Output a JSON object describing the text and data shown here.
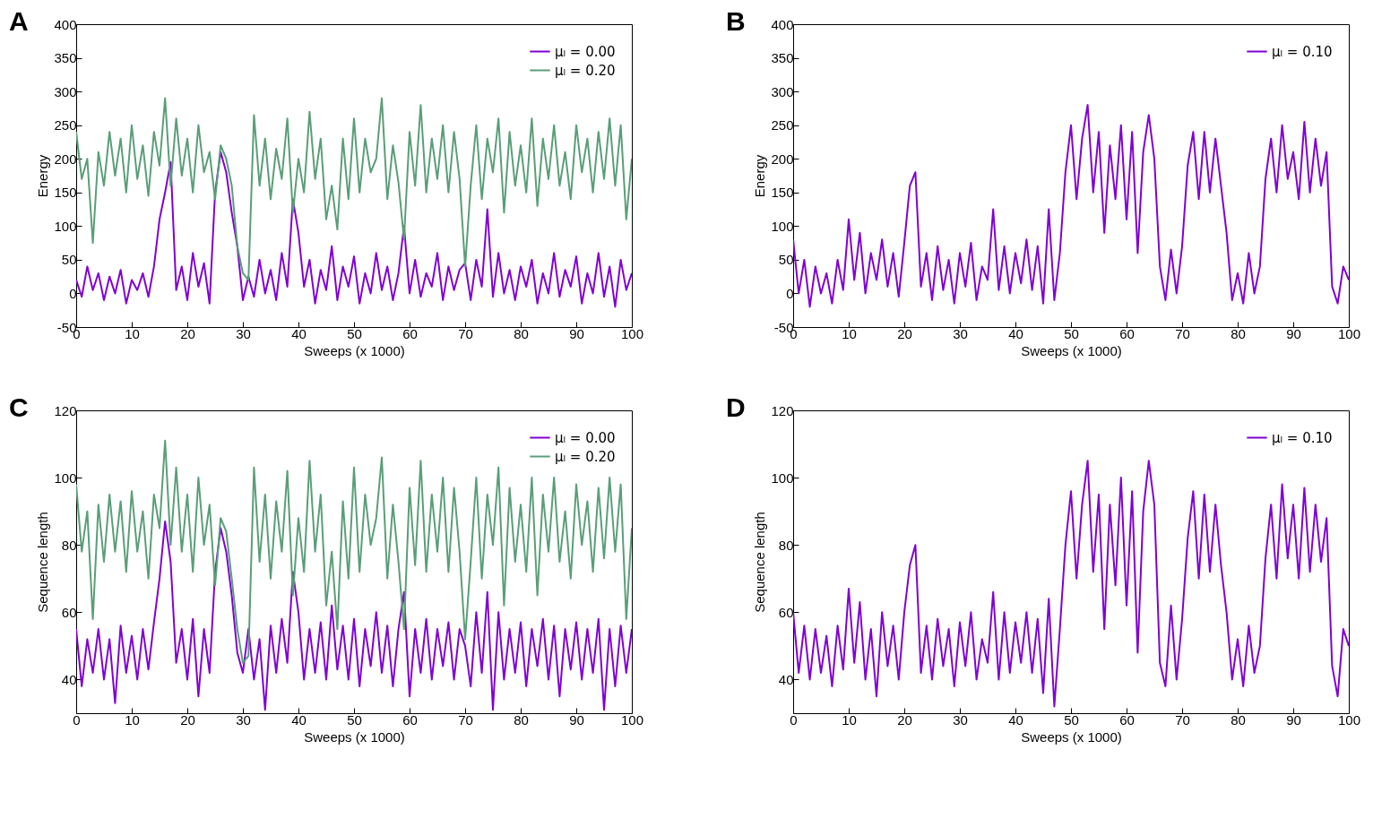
{
  "chart_data": [
    {
      "type": "line",
      "title": "A",
      "xlabel": "Sweeps (x 1000)",
      "ylabel": "Energy",
      "legend": "top right",
      "xlim": [
        0,
        100
      ],
      "xticks": [
        0,
        10,
        20,
        30,
        40,
        50,
        60,
        70,
        80,
        90,
        100
      ],
      "ylim": [
        -50,
        400
      ],
      "yticks": [
        -50,
        0,
        50,
        100,
        150,
        200,
        250,
        300,
        350,
        400
      ],
      "x": [
        0,
        1,
        2,
        3,
        4,
        5,
        6,
        7,
        8,
        9,
        10,
        11,
        12,
        13,
        14,
        15,
        16,
        17,
        18,
        19,
        20,
        21,
        22,
        23,
        24,
        25,
        26,
        27,
        28,
        29,
        30,
        31,
        32,
        33,
        34,
        35,
        36,
        37,
        38,
        39,
        40,
        41,
        42,
        43,
        44,
        45,
        46,
        47,
        48,
        49,
        50,
        51,
        52,
        53,
        54,
        55,
        56,
        57,
        58,
        59,
        60,
        61,
        62,
        63,
        64,
        65,
        66,
        67,
        68,
        69,
        70,
        71,
        72,
        73,
        74,
        75,
        76,
        77,
        78,
        79,
        80,
        81,
        82,
        83,
        84,
        85,
        86,
        87,
        88,
        89,
        90,
        91,
        92,
        93,
        94,
        95,
        96,
        97,
        98,
        99,
        100
      ],
      "series": [
        {
          "name": "μₗ = 0.00",
          "color": "#8000d4",
          "values": [
            20,
            -5,
            40,
            5,
            30,
            -10,
            25,
            0,
            35,
            -15,
            20,
            5,
            30,
            -5,
            40,
            110,
            150,
            195,
            5,
            40,
            -10,
            60,
            10,
            45,
            -15,
            150,
            210,
            180,
            120,
            70,
            -10,
            25,
            -5,
            50,
            0,
            35,
            -10,
            60,
            10,
            140,
            90,
            10,
            50,
            -15,
            35,
            5,
            70,
            -10,
            40,
            10,
            55,
            -15,
            30,
            0,
            60,
            5,
            40,
            -10,
            30,
            100,
            0,
            50,
            -5,
            30,
            10,
            60,
            -10,
            40,
            5,
            35,
            45,
            -10,
            50,
            10,
            125,
            -5,
            60,
            0,
            35,
            -10,
            40,
            10,
            50,
            -15,
            30,
            0,
            60,
            -5,
            35,
            10,
            55,
            -15,
            30,
            0,
            60,
            -5,
            40,
            -20,
            50,
            5,
            30
          ]
        },
        {
          "name": "μₗ = 0.20",
          "color": "#5a9e78",
          "values": [
            240,
            170,
            200,
            75,
            210,
            160,
            240,
            175,
            230,
            150,
            250,
            170,
            220,
            145,
            240,
            190,
            290,
            160,
            260,
            175,
            230,
            150,
            250,
            180,
            210,
            140,
            220,
            200,
            160,
            70,
            30,
            20,
            265,
            160,
            230,
            140,
            215,
            170,
            260,
            120,
            200,
            150,
            270,
            170,
            230,
            110,
            160,
            95,
            230,
            140,
            260,
            150,
            230,
            180,
            200,
            290,
            140,
            220,
            165,
            80,
            240,
            160,
            280,
            150,
            230,
            170,
            250,
            150,
            240,
            170,
            40,
            160,
            250,
            140,
            230,
            180,
            260,
            120,
            240,
            160,
            220,
            150,
            260,
            130,
            230,
            170,
            250,
            160,
            210,
            140,
            250,
            180,
            230,
            150,
            240,
            170,
            260,
            160,
            250,
            110,
            200
          ]
        }
      ]
    },
    {
      "type": "line",
      "title": "B",
      "xlabel": "Sweeps (x 1000)",
      "ylabel": "Energy",
      "legend": "top right",
      "xlim": [
        0,
        100
      ],
      "xticks": [
        0,
        10,
        20,
        30,
        40,
        50,
        60,
        70,
        80,
        90,
        100
      ],
      "ylim": [
        -50,
        400
      ],
      "yticks": [
        -50,
        0,
        50,
        100,
        150,
        200,
        250,
        300,
        350,
        400
      ],
      "x": [
        0,
        1,
        2,
        3,
        4,
        5,
        6,
        7,
        8,
        9,
        10,
        11,
        12,
        13,
        14,
        15,
        16,
        17,
        18,
        19,
        20,
        21,
        22,
        23,
        24,
        25,
        26,
        27,
        28,
        29,
        30,
        31,
        32,
        33,
        34,
        35,
        36,
        37,
        38,
        39,
        40,
        41,
        42,
        43,
        44,
        45,
        46,
        47,
        48,
        49,
        50,
        51,
        52,
        53,
        54,
        55,
        56,
        57,
        58,
        59,
        60,
        61,
        62,
        63,
        64,
        65,
        66,
        67,
        68,
        69,
        70,
        71,
        72,
        73,
        74,
        75,
        76,
        77,
        78,
        79,
        80,
        81,
        82,
        83,
        84,
        85,
        86,
        87,
        88,
        89,
        90,
        91,
        92,
        93,
        94,
        95,
        96,
        97,
        98,
        99,
        100
      ],
      "series": [
        {
          "name": "μₗ = 0.10",
          "color": "#8000d4",
          "values": [
            80,
            0,
            50,
            -20,
            40,
            0,
            30,
            -15,
            50,
            5,
            110,
            20,
            90,
            0,
            60,
            20,
            80,
            10,
            60,
            -5,
            75,
            160,
            180,
            10,
            60,
            -10,
            70,
            5,
            50,
            -15,
            60,
            10,
            75,
            -10,
            40,
            20,
            125,
            5,
            70,
            0,
            60,
            15,
            80,
            5,
            70,
            -15,
            125,
            -10,
            60,
            180,
            250,
            140,
            230,
            280,
            150,
            240,
            90,
            220,
            140,
            250,
            110,
            240,
            60,
            210,
            265,
            200,
            40,
            -10,
            65,
            0,
            70,
            190,
            240,
            140,
            240,
            150,
            230,
            160,
            90,
            -10,
            30,
            -15,
            60,
            0,
            40,
            170,
            230,
            150,
            250,
            170,
            210,
            140,
            255,
            150,
            230,
            160,
            210,
            10,
            -15,
            40,
            20
          ]
        }
      ]
    },
    {
      "type": "line",
      "title": "C",
      "xlabel": "Sweeps (x 1000)",
      "ylabel": "Sequence length",
      "legend": "top right",
      "xlim": [
        0,
        100
      ],
      "xticks": [
        0,
        10,
        20,
        30,
        40,
        50,
        60,
        70,
        80,
        90,
        100
      ],
      "ylim": [
        30,
        120
      ],
      "yticks": [
        40,
        60,
        80,
        100,
        120
      ],
      "x": [
        0,
        1,
        2,
        3,
        4,
        5,
        6,
        7,
        8,
        9,
        10,
        11,
        12,
        13,
        14,
        15,
        16,
        17,
        18,
        19,
        20,
        21,
        22,
        23,
        24,
        25,
        26,
        27,
        28,
        29,
        30,
        31,
        32,
        33,
        34,
        35,
        36,
        37,
        38,
        39,
        40,
        41,
        42,
        43,
        44,
        45,
        46,
        47,
        48,
        49,
        50,
        51,
        52,
        53,
        54,
        55,
        56,
        57,
        58,
        59,
        60,
        61,
        62,
        63,
        64,
        65,
        66,
        67,
        68,
        69,
        70,
        71,
        72,
        73,
        74,
        75,
        76,
        77,
        78,
        79,
        80,
        81,
        82,
        83,
        84,
        85,
        86,
        87,
        88,
        89,
        90,
        91,
        92,
        93,
        94,
        95,
        96,
        97,
        98,
        99,
        100
      ],
      "series": [
        {
          "name": "μₗ = 0.00",
          "color": "#8000d4",
          "values": [
            55,
            38,
            52,
            42,
            55,
            40,
            52,
            33,
            56,
            42,
            53,
            40,
            55,
            43,
            57,
            70,
            87,
            75,
            45,
            55,
            40,
            58,
            35,
            55,
            42,
            72,
            85,
            78,
            65,
            48,
            42,
            55,
            40,
            52,
            31,
            56,
            42,
            58,
            45,
            72,
            60,
            40,
            55,
            42,
            57,
            40,
            62,
            43,
            56,
            40,
            58,
            38,
            55,
            44,
            60,
            42,
            56,
            38,
            55,
            66,
            35,
            55,
            42,
            58,
            40,
            55,
            44,
            57,
            40,
            55,
            50,
            38,
            60,
            42,
            66,
            31,
            60,
            40,
            55,
            42,
            57,
            38,
            55,
            44,
            58,
            40,
            56,
            35,
            55,
            43,
            57,
            40,
            55,
            42,
            58,
            31,
            55,
            38,
            56,
            42,
            55
          ]
        },
        {
          "name": "μₗ = 0.20",
          "color": "#5a9e78",
          "values": [
            98,
            78,
            90,
            58,
            92,
            75,
            95,
            78,
            93,
            72,
            96,
            78,
            90,
            70,
            95,
            85,
            111,
            80,
            103,
            78,
            95,
            72,
            100,
            80,
            92,
            68,
            88,
            84,
            70,
            55,
            45,
            47,
            103,
            75,
            95,
            70,
            93,
            78,
            102,
            65,
            88,
            72,
            105,
            78,
            95,
            62,
            78,
            55,
            93,
            70,
            103,
            72,
            95,
            80,
            88,
            106,
            70,
            92,
            75,
            55,
            97,
            74,
            105,
            72,
            95,
            78,
            100,
            72,
            97,
            78,
            52,
            75,
            100,
            70,
            95,
            80,
            103,
            62,
            97,
            75,
            92,
            72,
            100,
            65,
            95,
            78,
            100,
            75,
            90,
            70,
            98,
            80,
            93,
            72,
            97,
            76,
            100,
            78,
            98,
            58,
            85
          ]
        }
      ]
    },
    {
      "type": "line",
      "title": "D",
      "xlabel": "Sweeps (x 1000)",
      "ylabel": "Sequence length",
      "legend": "top right",
      "xlim": [
        0,
        100
      ],
      "xticks": [
        0,
        10,
        20,
        30,
        40,
        50,
        60,
        70,
        80,
        90,
        100
      ],
      "ylim": [
        30,
        120
      ],
      "yticks": [
        40,
        60,
        80,
        100,
        120
      ],
      "x": [
        0,
        1,
        2,
        3,
        4,
        5,
        6,
        7,
        8,
        9,
        10,
        11,
        12,
        13,
        14,
        15,
        16,
        17,
        18,
        19,
        20,
        21,
        22,
        23,
        24,
        25,
        26,
        27,
        28,
        29,
        30,
        31,
        32,
        33,
        34,
        35,
        36,
        37,
        38,
        39,
        40,
        41,
        42,
        43,
        44,
        45,
        46,
        47,
        48,
        49,
        50,
        51,
        52,
        53,
        54,
        55,
        56,
        57,
        58,
        59,
        60,
        61,
        62,
        63,
        64,
        65,
        66,
        67,
        68,
        69,
        70,
        71,
        72,
        73,
        74,
        75,
        76,
        77,
        78,
        79,
        80,
        81,
        82,
        83,
        84,
        85,
        86,
        87,
        88,
        89,
        90,
        91,
        92,
        93,
        94,
        95,
        96,
        97,
        98,
        99,
        100
      ],
      "series": [
        {
          "name": "μₗ = 0.10",
          "color": "#8000d4",
          "values": [
            60,
            42,
            56,
            40,
            55,
            42,
            53,
            38,
            56,
            43,
            67,
            45,
            63,
            40,
            55,
            35,
            60,
            44,
            56,
            40,
            60,
            74,
            80,
            42,
            56,
            40,
            58,
            44,
            55,
            38,
            57,
            44,
            60,
            40,
            52,
            45,
            66,
            40,
            60,
            42,
            57,
            45,
            60,
            42,
            58,
            36,
            64,
            32,
            55,
            80,
            96,
            70,
            92,
            105,
            72,
            95,
            55,
            92,
            68,
            100,
            62,
            96,
            48,
            90,
            105,
            92,
            45,
            38,
            62,
            40,
            58,
            82,
            96,
            70,
            95,
            72,
            92,
            74,
            60,
            40,
            52,
            38,
            56,
            42,
            50,
            76,
            92,
            70,
            98,
            76,
            92,
            70,
            97,
            72,
            92,
            75,
            88,
            44,
            35,
            55,
            50
          ]
        }
      ]
    }
  ]
}
